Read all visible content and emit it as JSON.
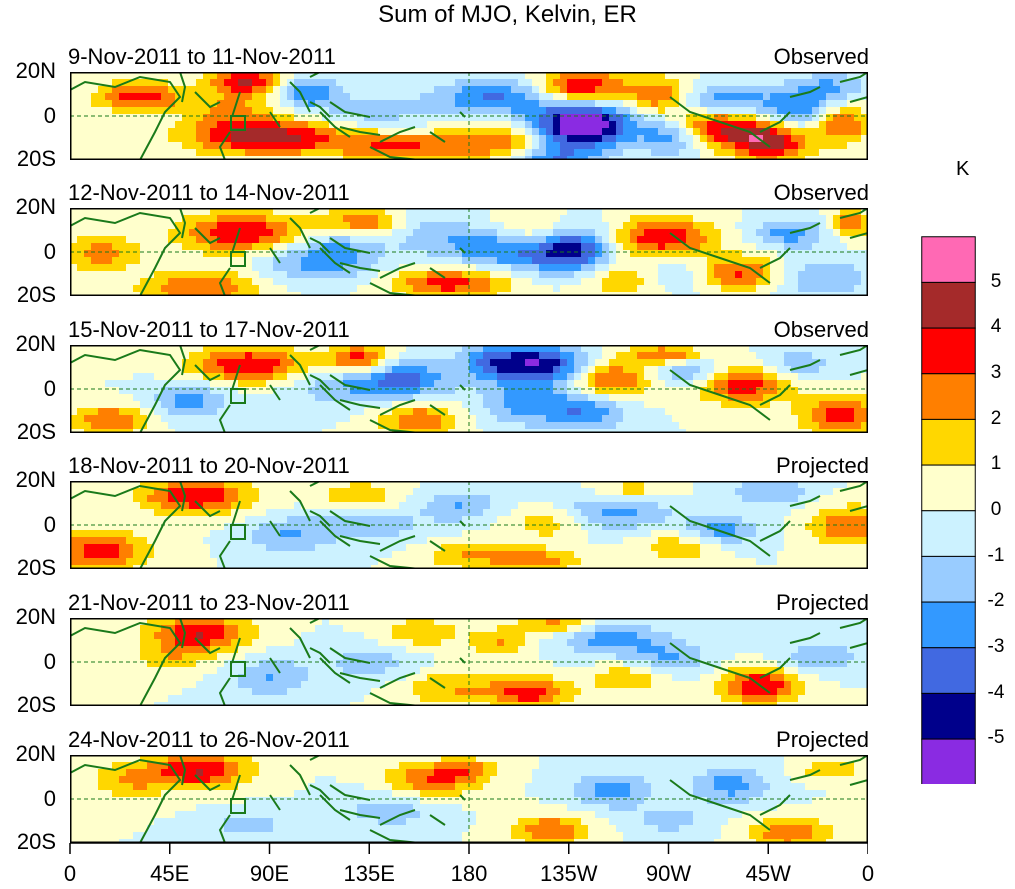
{
  "title": "Sum of MJO, Kelvin, ER",
  "panels": [
    {
      "dates": "9-Nov-2011 to 11-Nov-2011",
      "status": "Observed"
    },
    {
      "dates": "12-Nov-2011 to 14-Nov-2011",
      "status": "Observed"
    },
    {
      "dates": "15-Nov-2011 to 17-Nov-2011",
      "status": "Observed"
    },
    {
      "dates": "18-Nov-2011 to 20-Nov-2011",
      "status": "Projected"
    },
    {
      "dates": "21-Nov-2011 to 23-Nov-2011",
      "status": "Projected"
    },
    {
      "dates": "24-Nov-2011 to 26-Nov-2011",
      "status": "Projected"
    }
  ],
  "y_ticks": [
    "20N",
    "0",
    "20S"
  ],
  "x_ticks": [
    "0",
    "45E",
    "90E",
    "135E",
    "180",
    "135W",
    "90W",
    "45W",
    "0"
  ],
  "legend": {
    "unit": "K",
    "ticks": [
      "5",
      "4",
      "3",
      "2",
      "1",
      "0",
      "-1",
      "-2",
      "-3",
      "-4",
      "-5"
    ],
    "colors": [
      "#ff69b4",
      "#a52a2a",
      "#ff0000",
      "#ff7f00",
      "#ffd700",
      "#ffffcc",
      "#ccf2ff",
      "#99ccff",
      "#3399ff",
      "#4169e1",
      "#00008b",
      "#8a2be2"
    ]
  }
}
